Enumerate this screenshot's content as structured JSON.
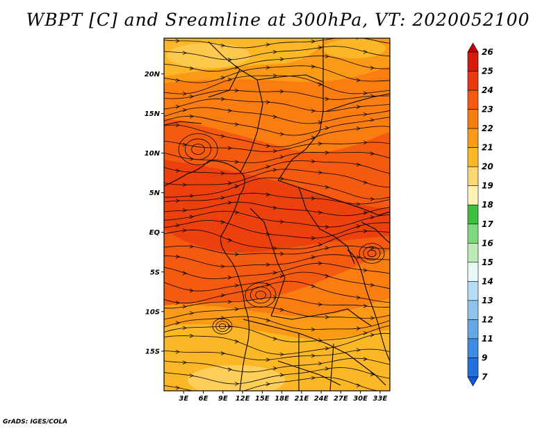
{
  "title": "WBPT [C] and Sreamline at 300hPa, VT: 2020052100",
  "footer": "GrADS: IGES/COLA",
  "map": {
    "lat_ticks": [
      "20N",
      "15N",
      "10N",
      "5N",
      "EQ",
      "5S",
      "10S",
      "15S"
    ],
    "lon_ticks": [
      "3E",
      "6E",
      "9E",
      "12E",
      "15E",
      "18E",
      "21E",
      "24E",
      "27E",
      "30E",
      "33E"
    ],
    "lat_values": [
      20,
      15,
      10,
      5,
      0,
      -5,
      -10,
      -15
    ],
    "lon_values": [
      3,
      6,
      9,
      12,
      15,
      18,
      21,
      24,
      27,
      30,
      33
    ],
    "lon_range": [
      0,
      34.5
    ],
    "lat_range": [
      -20,
      24.5
    ],
    "field": "wet bulb potential temperature",
    "streamlines": "300hPa wind"
  },
  "colorbar": {
    "levels": [
      "26",
      "25",
      "24",
      "23",
      "22",
      "21",
      "20",
      "19",
      "18",
      "17",
      "16",
      "15",
      "14",
      "13",
      "12",
      "11",
      "9",
      "7"
    ],
    "colors": [
      "#c00000",
      "#d81a0a",
      "#ea3a0e",
      "#f55b10",
      "#fa7d12",
      "#fb9a16",
      "#fbb726",
      "#fdd770",
      "#fdf3b4",
      "#3fbf3f",
      "#7dd97d",
      "#b9ebb3",
      "#e8f8f6",
      "#b7dcf5",
      "#8ec3f0",
      "#65a8ea",
      "#3d8ee3",
      "#1f72dc",
      "#1258d2"
    ]
  }
}
